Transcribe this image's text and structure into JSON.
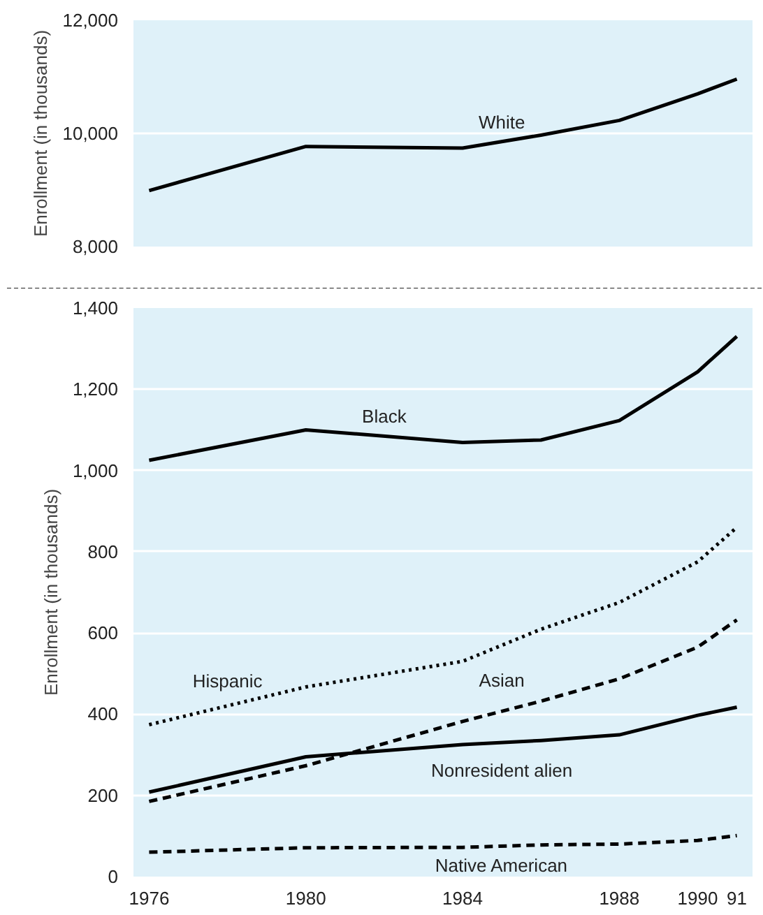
{
  "chart_data": [
    {
      "type": "line",
      "ylabel": "Enrollment (in thousands)",
      "ylim": [
        8000,
        12000
      ],
      "yticks": [
        {
          "value": 8000,
          "label": "8,000"
        },
        {
          "value": 10000,
          "label": "10,000"
        },
        {
          "value": 12000,
          "label": "12,000"
        }
      ],
      "xlim": [
        1975.6,
        1991.4
      ],
      "tick_labels": "y",
      "grid": "y",
      "marker": "none",
      "series": [
        {
          "name": "White",
          "color": "#000000",
          "line_style": "solid",
          "x": [
            1976,
            1980,
            1984,
            1986,
            1988,
            1990,
            1991
          ],
          "values": [
            8990,
            9770,
            9740,
            9970,
            10230,
            10700,
            10960
          ]
        }
      ]
    },
    {
      "type": "line",
      "ylabel": "Enrollment (in thousands)",
      "ylim": [
        0,
        1400
      ],
      "yticks": [
        0,
        200,
        400,
        600,
        800,
        {
          "value": 1000,
          "label": "1,000"
        },
        {
          "value": 1200,
          "label": "1,200"
        },
        {
          "value": 1400,
          "label": "1,400"
        }
      ],
      "xlim": [
        1975.6,
        1991.4
      ],
      "xticks": [
        1976,
        1980,
        1984,
        1988,
        1990,
        {
          "value": 1991,
          "label": "91"
        }
      ],
      "grid": "y",
      "marker": "none",
      "series": [
        {
          "name": "Black",
          "color": "#000000",
          "line_style": "solid",
          "x": [
            1976,
            1980,
            1984,
            1986,
            1988,
            1990,
            1991
          ],
          "values": [
            1025,
            1100,
            1069,
            1075,
            1123,
            1243,
            1330
          ]
        },
        {
          "name": "Hispanic",
          "color": "#000000",
          "line_style": "dotted",
          "x": [
            1976,
            1980,
            1984,
            1986,
            1988,
            1990,
            1991
          ],
          "values": [
            374,
            467,
            530,
            609,
            675,
            775,
            860
          ]
        },
        {
          "name": "Asian",
          "color": "#000000",
          "line_style": "dashed",
          "x": [
            1976,
            1980,
            1984,
            1986,
            1988,
            1990,
            1991
          ],
          "values": [
            185,
            273,
            382,
            432,
            487,
            565,
            632
          ]
        },
        {
          "name": "Nonresident alien",
          "color": "#000000",
          "line_style": "solid",
          "x": [
            1976,
            1980,
            1984,
            1986,
            1988,
            1990,
            1991
          ],
          "values": [
            208,
            295,
            325,
            335,
            349,
            397,
            417
          ]
        },
        {
          "name": "Native American",
          "color": "#000000",
          "line_style": "dashed",
          "x": [
            1976,
            1980,
            1984,
            1986,
            1988,
            1990,
            1991
          ],
          "values": [
            60,
            71,
            72,
            78,
            80,
            89,
            101
          ]
        }
      ]
    }
  ]
}
